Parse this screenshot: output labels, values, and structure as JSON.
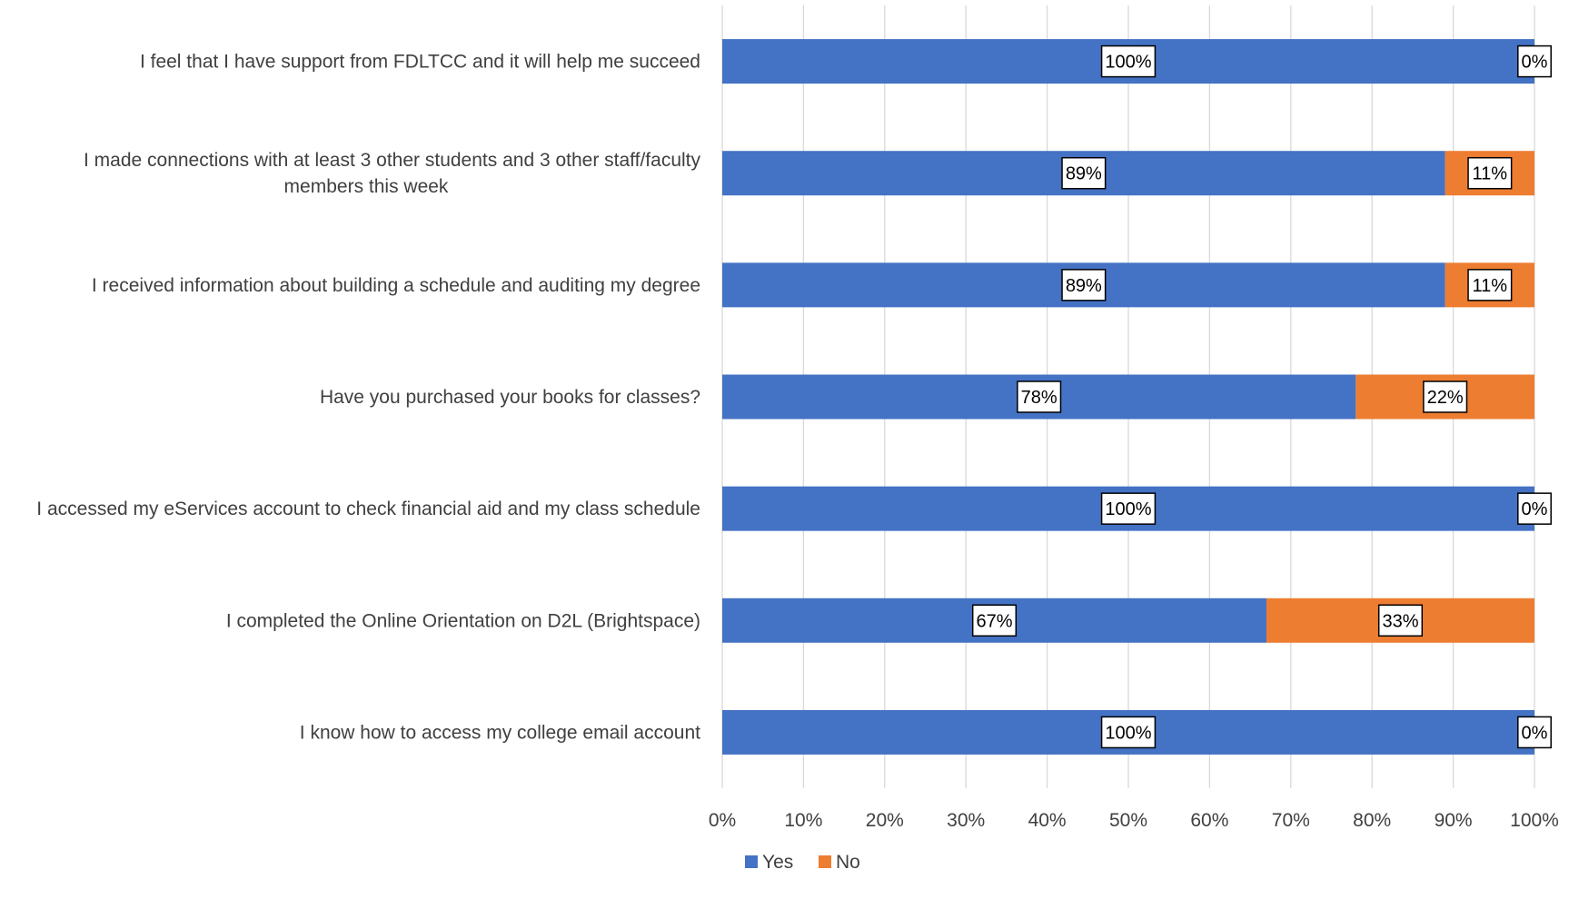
{
  "chart_data": {
    "type": "bar",
    "orientation": "horizontal",
    "stacking": "percent",
    "categories": [
      [
        "I feel that I have support from FDLTCC and it will help me succeed"
      ],
      [
        "I made connections with at least 3 other students and 3 other staff/faculty",
        "members this week"
      ],
      [
        "I received information about building a schedule and auditing my degree"
      ],
      [
        "Have you purchased your books for classes?"
      ],
      [
        "I accessed my eServices account to check financial aid and my class schedule"
      ],
      [
        "I completed the Online Orientation on D2L (Brightspace)"
      ],
      [
        "I know how to access my college email account"
      ]
    ],
    "series": [
      {
        "name": "Yes",
        "color": "#4472C4",
        "values": [
          100,
          89,
          89,
          78,
          100,
          67,
          100
        ],
        "labels": [
          "100%",
          "89%",
          "89%",
          "78%",
          "100%",
          "67%",
          "100%"
        ]
      },
      {
        "name": "No",
        "color": "#ED7D31",
        "values": [
          0,
          11,
          11,
          22,
          0,
          33,
          0
        ],
        "labels": [
          "0%",
          "11%",
          "11%",
          "22%",
          "0%",
          "33%",
          "0%"
        ]
      }
    ],
    "xlim": [
      0,
      100
    ],
    "xticks": [
      "0%",
      "10%",
      "20%",
      "30%",
      "40%",
      "50%",
      "60%",
      "70%",
      "80%",
      "90%",
      "100%"
    ],
    "grid": true,
    "legend": "bottom",
    "title": "",
    "xlabel": "",
    "ylabel": ""
  }
}
